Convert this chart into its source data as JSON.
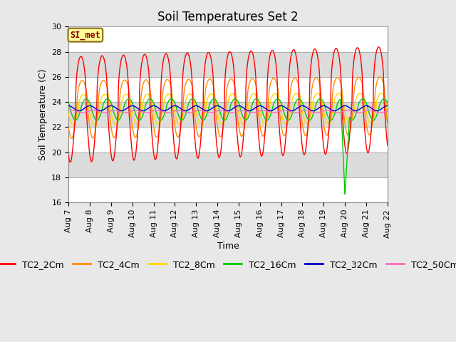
{
  "title": "Soil Temperatures Set 2",
  "xlabel": "Time",
  "ylabel": "Soil Temperature (C)",
  "ylim": [
    16,
    30
  ],
  "yticks": [
    16,
    18,
    20,
    22,
    24,
    26,
    28,
    30
  ],
  "annotation_text": "SI_met",
  "annotation_color": "#8B0000",
  "annotation_bg": "#FFFF99",
  "annotation_border": "#8B6914",
  "bg_color_fig": "#E8E8E8",
  "bg_band_light": "#FFFFFF",
  "bg_band_dark": "#DCDCDC",
  "series_colors": {
    "TC2_2Cm": "#FF0000",
    "TC2_4Cm": "#FF8C00",
    "TC2_8Cm": "#FFD700",
    "TC2_16Cm": "#00CC00",
    "TC2_32Cm": "#0000CC",
    "TC2_50Cm": "#FF69B4"
  },
  "start_day": 7,
  "end_day": 22,
  "num_points": 2000,
  "base_temp": 23.4,
  "period_hours": 24.0,
  "spike_day": 20,
  "spike_value": 16.5,
  "legend_fontsize": 9,
  "title_fontsize": 12,
  "tick_fontsize": 8
}
